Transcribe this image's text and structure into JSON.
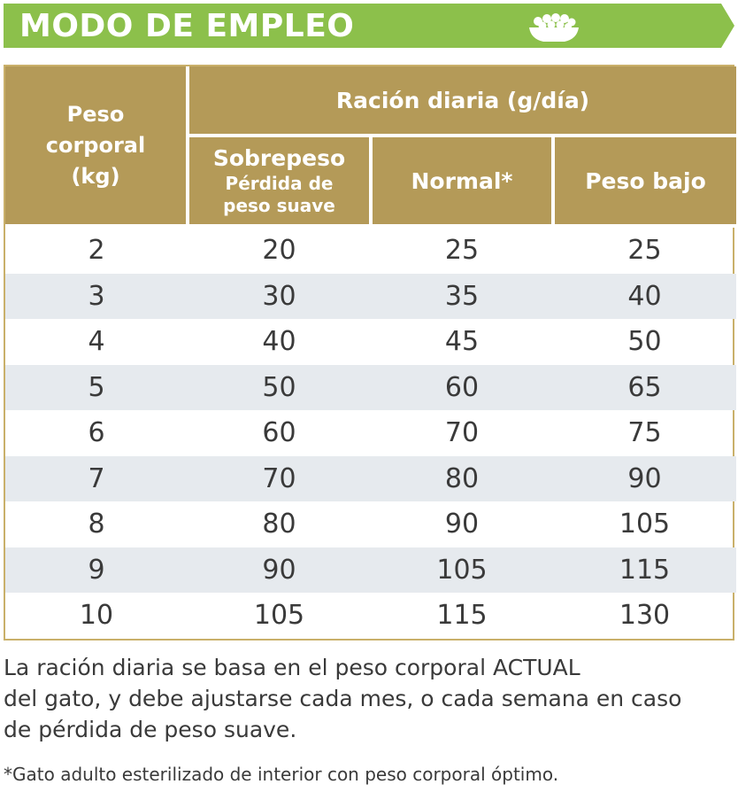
{
  "header": {
    "title": "MODO DE EMPLEO",
    "icon": "food-bowl-icon",
    "color": "#8cc04b"
  },
  "table": {
    "col_weight": [
      "Peso",
      "corporal",
      "(kg)"
    ],
    "group_header": "Ración diaria (g/día)",
    "col_overweight": "Sobrepeso",
    "col_overweight_sub": [
      "Pérdida de",
      "peso suave"
    ],
    "col_normal": "Normal*",
    "col_underweight": "Peso bajo",
    "header_color": "#b49a58",
    "stripe_color": "#e6eaee",
    "rows": [
      [
        "2",
        "20",
        "25",
        "25"
      ],
      [
        "3",
        "30",
        "35",
        "40"
      ],
      [
        "4",
        "40",
        "45",
        "50"
      ],
      [
        "5",
        "50",
        "60",
        "65"
      ],
      [
        "6",
        "60",
        "70",
        "75"
      ],
      [
        "7",
        "70",
        "80",
        "90"
      ],
      [
        "8",
        "80",
        "90",
        "105"
      ],
      [
        "9",
        "90",
        "105",
        "115"
      ],
      [
        "10",
        "105",
        "115",
        "130"
      ]
    ]
  },
  "note": {
    "lines": [
      "La ración diaria se basa en el peso corporal ACTUAL",
      "del gato, y debe ajustarse cada mes, o cada semana en caso",
      "de pérdida de peso suave."
    ]
  },
  "footnote": "*Gato adulto esterilizado de interior con peso corporal óptimo."
}
